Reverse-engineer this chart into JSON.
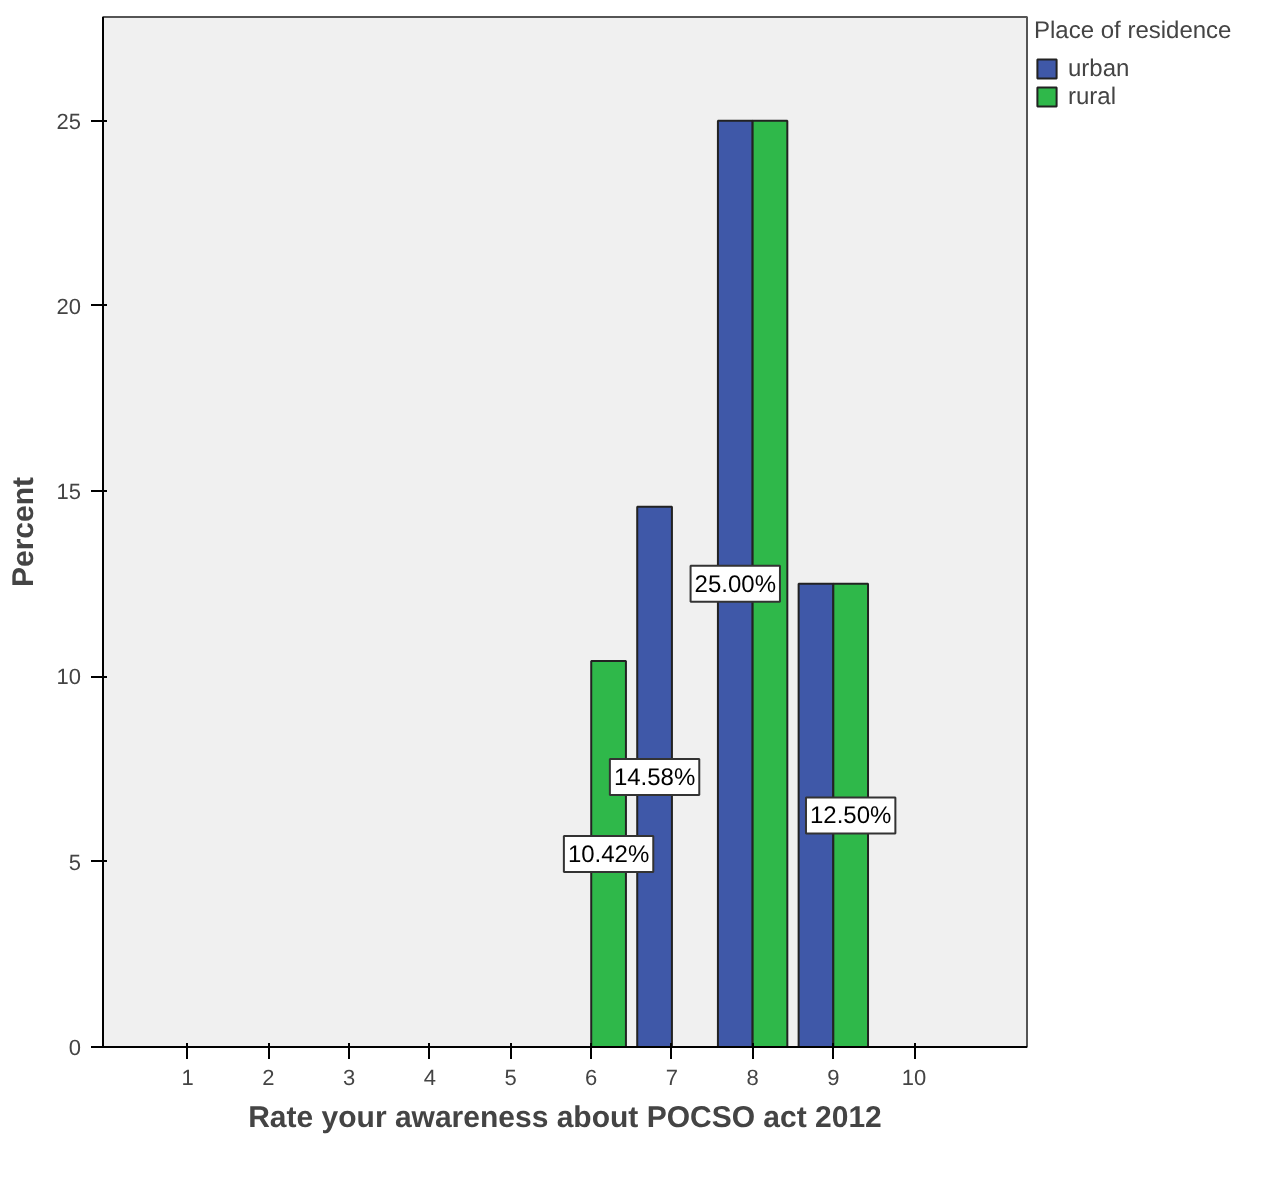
{
  "chart_data": {
    "type": "bar",
    "xlabel": "Rate your awareness about POCSO act 2012",
    "ylabel": "Percent",
    "legend_title": "Place of residence",
    "categories": [
      "1",
      "2",
      "3",
      "4",
      "5",
      "6",
      "7",
      "8",
      "9",
      "10"
    ],
    "series": [
      {
        "name": "urban",
        "color": "#3f58a8",
        "values": [
          null,
          null,
          null,
          null,
          null,
          null,
          14.58,
          25.0,
          12.5,
          null
        ],
        "value_labels": [
          null,
          null,
          null,
          null,
          null,
          null,
          "14.58%",
          "25.00%",
          null,
          null
        ]
      },
      {
        "name": "rural",
        "color": "#2fb84a",
        "values": [
          null,
          null,
          null,
          null,
          null,
          10.42,
          null,
          25.0,
          12.5,
          null
        ],
        "value_labels": [
          null,
          null,
          null,
          null,
          null,
          "10.42%",
          null,
          null,
          "12.50%",
          null
        ]
      }
    ],
    "ylim": [
      0,
      27.8
    ],
    "yticks": [
      0,
      5,
      10,
      15,
      20,
      25
    ],
    "grid": false,
    "legend": "top right"
  }
}
